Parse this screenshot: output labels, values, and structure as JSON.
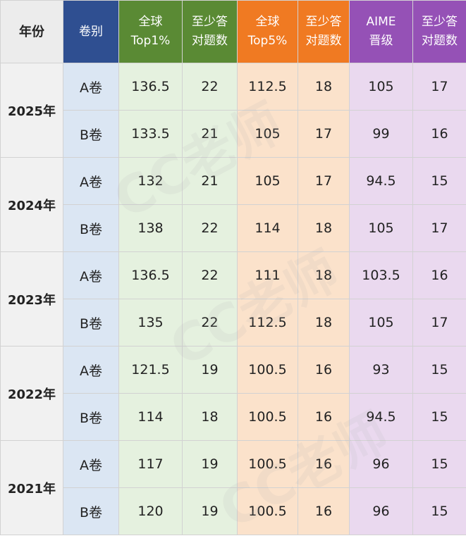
{
  "headers": {
    "year": "年份",
    "volume": "卷别",
    "top1_line1": "全球",
    "top1_line2": "Top1%",
    "min1_line1": "至少答",
    "min1_line2": "对题数",
    "top5_line1": "全球",
    "top5_line2": "Top5%",
    "min5_line1": "至少答",
    "min5_line2": "对题数",
    "aime_line1": "AIME",
    "aime_line2": "晋级",
    "mina_line1": "至少答",
    "mina_line2": "对题数"
  },
  "rows": [
    {
      "year": "2025年",
      "vol": "A卷",
      "top1": "136.5",
      "min1": "22",
      "top5": "112.5",
      "min5": "18",
      "aime": "105",
      "mina": "17"
    },
    {
      "vol": "B卷",
      "top1": "133.5",
      "min1": "21",
      "top5": "105",
      "min5": "17",
      "aime": "99",
      "mina": "16"
    },
    {
      "year": "2024年",
      "vol": "A卷",
      "top1": "132",
      "min1": "21",
      "top5": "105",
      "min5": "17",
      "aime": "94.5",
      "mina": "15"
    },
    {
      "vol": "B卷",
      "top1": "138",
      "min1": "22",
      "top5": "114",
      "min5": "18",
      "aime": "105",
      "mina": "17"
    },
    {
      "year": "2023年",
      "vol": "A卷",
      "top1": "136.5",
      "min1": "22",
      "top5": "111",
      "min5": "18",
      "aime": "103.5",
      "mina": "16"
    },
    {
      "vol": "B卷",
      "top1": "135",
      "min1": "22",
      "top5": "112.5",
      "min5": "18",
      "aime": "105",
      "mina": "17"
    },
    {
      "year": "2022年",
      "vol": "A卷",
      "top1": "121.5",
      "min1": "19",
      "top5": "100.5",
      "min5": "16",
      "aime": "93",
      "mina": "15"
    },
    {
      "vol": "B卷",
      "top1": "114",
      "min1": "18",
      "top5": "100.5",
      "min5": "16",
      "aime": "94.5",
      "mina": "15"
    },
    {
      "year": "2021年",
      "vol": "A卷",
      "top1": "117",
      "min1": "19",
      "top5": "100.5",
      "min5": "16",
      "aime": "96",
      "mina": "15"
    },
    {
      "vol": "B卷",
      "top1": "120",
      "min1": "19",
      "top5": "100.5",
      "min5": "16",
      "aime": "96",
      "mina": "15"
    }
  ],
  "watermark": "CC老师",
  "colors": {
    "volume_header": "#2f4f91",
    "top1_header": "#5a8a34",
    "top5_header": "#f07a22",
    "aime_header": "#9551b6"
  }
}
